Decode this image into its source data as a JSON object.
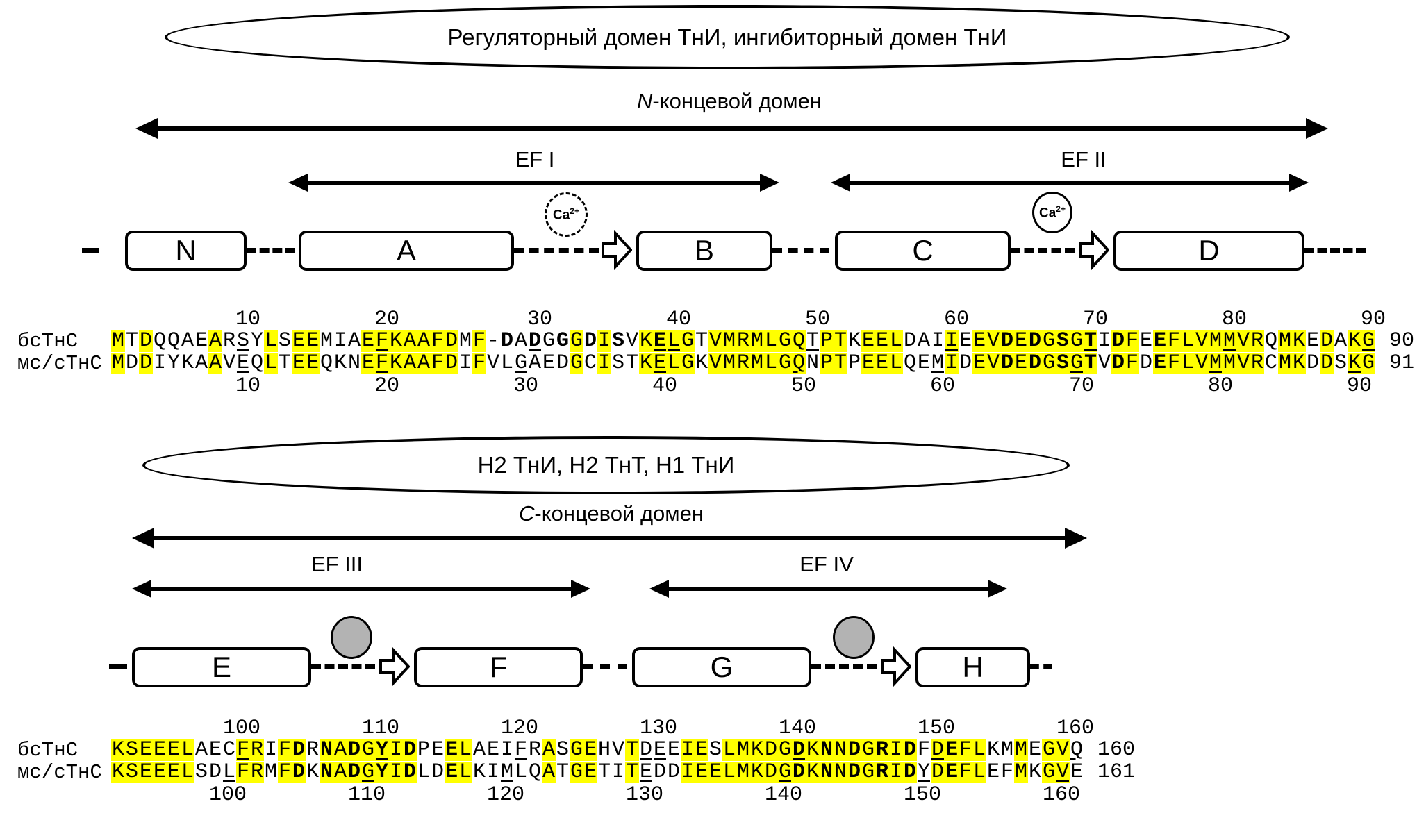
{
  "figure": {
    "top": {
      "ellipse_label": "Регуляторный домен ТнИ, ингибиторный домен ТнИ",
      "domain": {
        "italic": "N",
        "rest": "-концевой домен"
      },
      "ef_left": "EF I",
      "ef_right": "EF II",
      "ca_dashed": {
        "text": "Ca",
        "sup": "2+"
      },
      "ca_solid": {
        "text": "Ca",
        "sup": "2+"
      },
      "helices": [
        "N",
        "A",
        "B",
        "C",
        "D"
      ]
    },
    "bottom": {
      "ellipse_label": "H2 ТнИ, H2 ТнТ, H1 ТнИ",
      "domain": {
        "italic": "C",
        "rest": "-концевой домен"
      },
      "ef_left": "EF III",
      "ef_right": "EF IV",
      "helices": [
        "E",
        "F",
        "G",
        "H"
      ]
    }
  },
  "colors": {
    "highlight": "#ffff00",
    "ink": "#000000",
    "circle_gray": "#b3b3b3"
  },
  "alignment": {
    "blocks": [
      {
        "top_numbers": [
          {
            "value": "10",
            "col": 10
          },
          {
            "value": "20",
            "col": 20
          },
          {
            "value": "30",
            "col": 31
          },
          {
            "value": "40",
            "col": 41
          },
          {
            "value": "50",
            "col": 51
          },
          {
            "value": "60",
            "col": 61
          },
          {
            "value": "70",
            "col": 71
          },
          {
            "value": "80",
            "col": 81
          },
          {
            "value": "90",
            "col": 91
          }
        ],
        "bottom_numbers": [
          {
            "value": "10",
            "col": 10
          },
          {
            "value": "20",
            "col": 20
          },
          {
            "value": "30",
            "col": 30
          },
          {
            "value": "40",
            "col": 40
          },
          {
            "value": "50",
            "col": 50
          },
          {
            "value": "60",
            "col": 60
          },
          {
            "value": "70",
            "col": 70
          },
          {
            "value": "80",
            "col": 80
          },
          {
            "value": "90",
            "col": 90
          }
        ],
        "rows": [
          {
            "label": "бсТнС",
            "sequence": "MTDQQAEARSYLSEEMIAEFKAAFDMF-DADGGGDISVKELGTVMRMLGQTPTKEELDAIIEEVDEDGSGTIDFEEFLVMMVRQMKEDAKG",
            "end_number": "90",
            "highlight": [
              1,
              3,
              8,
              12,
              14,
              15,
              19,
              20,
              21,
              22,
              23,
              24,
              25,
              27,
              34,
              36,
              39,
              40,
              41,
              42,
              44,
              45,
              46,
              47,
              48,
              49,
              50,
              52,
              53,
              55,
              56,
              57,
              61,
              63,
              64,
              65,
              66,
              67,
              68,
              69,
              70,
              71,
              73,
              74,
              76,
              77,
              78,
              79,
              80,
              81,
              82,
              83,
              85,
              86,
              88,
              90,
              91
            ],
            "bold": [
              29,
              31,
              33,
              35,
              37,
              40,
              65,
              67,
              69,
              71,
              73,
              76
            ],
            "underline": [
              10,
              20,
              31,
              40,
              41,
              51,
              61,
              71,
              81,
              91
            ]
          },
          {
            "label": "мс/сТнС",
            "sequence": "MDDIYKAAVEQLTEEQKNEFKAAFDIFVLGAEDGCISTKELGKVMRMLGQNPTPEELQEMIDEVDEDGSGTVDFDEFLVMMVRCMKDDSKG",
            "end_number": "91",
            "highlight": [
              1,
              3,
              8,
              12,
              14,
              15,
              19,
              20,
              21,
              22,
              23,
              24,
              25,
              27,
              34,
              36,
              39,
              40,
              41,
              42,
              44,
              45,
              46,
              47,
              48,
              49,
              50,
              52,
              53,
              55,
              56,
              57,
              61,
              63,
              64,
              65,
              66,
              67,
              68,
              69,
              70,
              71,
              73,
              74,
              76,
              77,
              78,
              79,
              80,
              81,
              82,
              83,
              85,
              86,
              88,
              90,
              91
            ],
            "bold": [
              65,
              67,
              69,
              71,
              73,
              76
            ],
            "underline": [
              10,
              20,
              30,
              40,
              50,
              60,
              70,
              80,
              90
            ]
          }
        ]
      },
      {
        "top_numbers": [
          {
            "value": "100",
            "col": 10
          },
          {
            "value": "110",
            "col": 20
          },
          {
            "value": "120",
            "col": 30
          },
          {
            "value": "130",
            "col": 40
          },
          {
            "value": "140",
            "col": 50
          },
          {
            "value": "150",
            "col": 60
          },
          {
            "value": "160",
            "col": 70
          }
        ],
        "bottom_numbers": [
          {
            "value": "100",
            "col": 9
          },
          {
            "value": "110",
            "col": 19
          },
          {
            "value": "120",
            "col": 29
          },
          {
            "value": "130",
            "col": 39
          },
          {
            "value": "140",
            "col": 49
          },
          {
            "value": "150",
            "col": 59
          },
          {
            "value": "160",
            "col": 69
          }
        ],
        "rows": [
          {
            "label": "бсТнС",
            "sequence": "KSEEELAECFRIFDRNADGYIDPEELAEIFRASGEHVTDEEIESLMKDGDKNNDGRIDFDEFLKMMEGVQ",
            "end_number": "160",
            "highlight": [
              1,
              2,
              3,
              4,
              5,
              6,
              10,
              11,
              13,
              14,
              16,
              17,
              18,
              19,
              20,
              21,
              22,
              25,
              26,
              32,
              34,
              35,
              38,
              42,
              43,
              45,
              46,
              47,
              48,
              49,
              50,
              51,
              52,
              53,
              54,
              55,
              56,
              57,
              58,
              60,
              61,
              62,
              63,
              66,
              68,
              69
            ],
            "bold": [
              14,
              16,
              18,
              20,
              22,
              25,
              50,
              52,
              54,
              56,
              58,
              61
            ],
            "underline": [
              10,
              20,
              30,
              39,
              40,
              50,
              60,
              70
            ]
          },
          {
            "label": "мс/сТнС",
            "sequence": "KSEEELSDLFRMFDKNADGYIDLDELKIMLQATGETITEDDIEELMKDGDKNNDGRIDYDEFLEFMKGVE",
            "end_number": "161",
            "highlight": [
              1,
              2,
              3,
              4,
              5,
              6,
              10,
              11,
              13,
              14,
              16,
              17,
              18,
              19,
              20,
              21,
              22,
              25,
              26,
              32,
              34,
              35,
              38,
              42,
              43,
              44,
              45,
              46,
              47,
              48,
              49,
              50,
              51,
              52,
              53,
              54,
              55,
              56,
              57,
              58,
              60,
              61,
              62,
              63,
              66,
              68,
              69
            ],
            "bold": [
              14,
              16,
              18,
              20,
              22,
              25,
              50,
              52,
              54,
              56,
              58,
              61
            ],
            "underline": [
              9,
              19,
              29,
              39,
              49,
              59,
              69
            ]
          }
        ]
      }
    ]
  }
}
